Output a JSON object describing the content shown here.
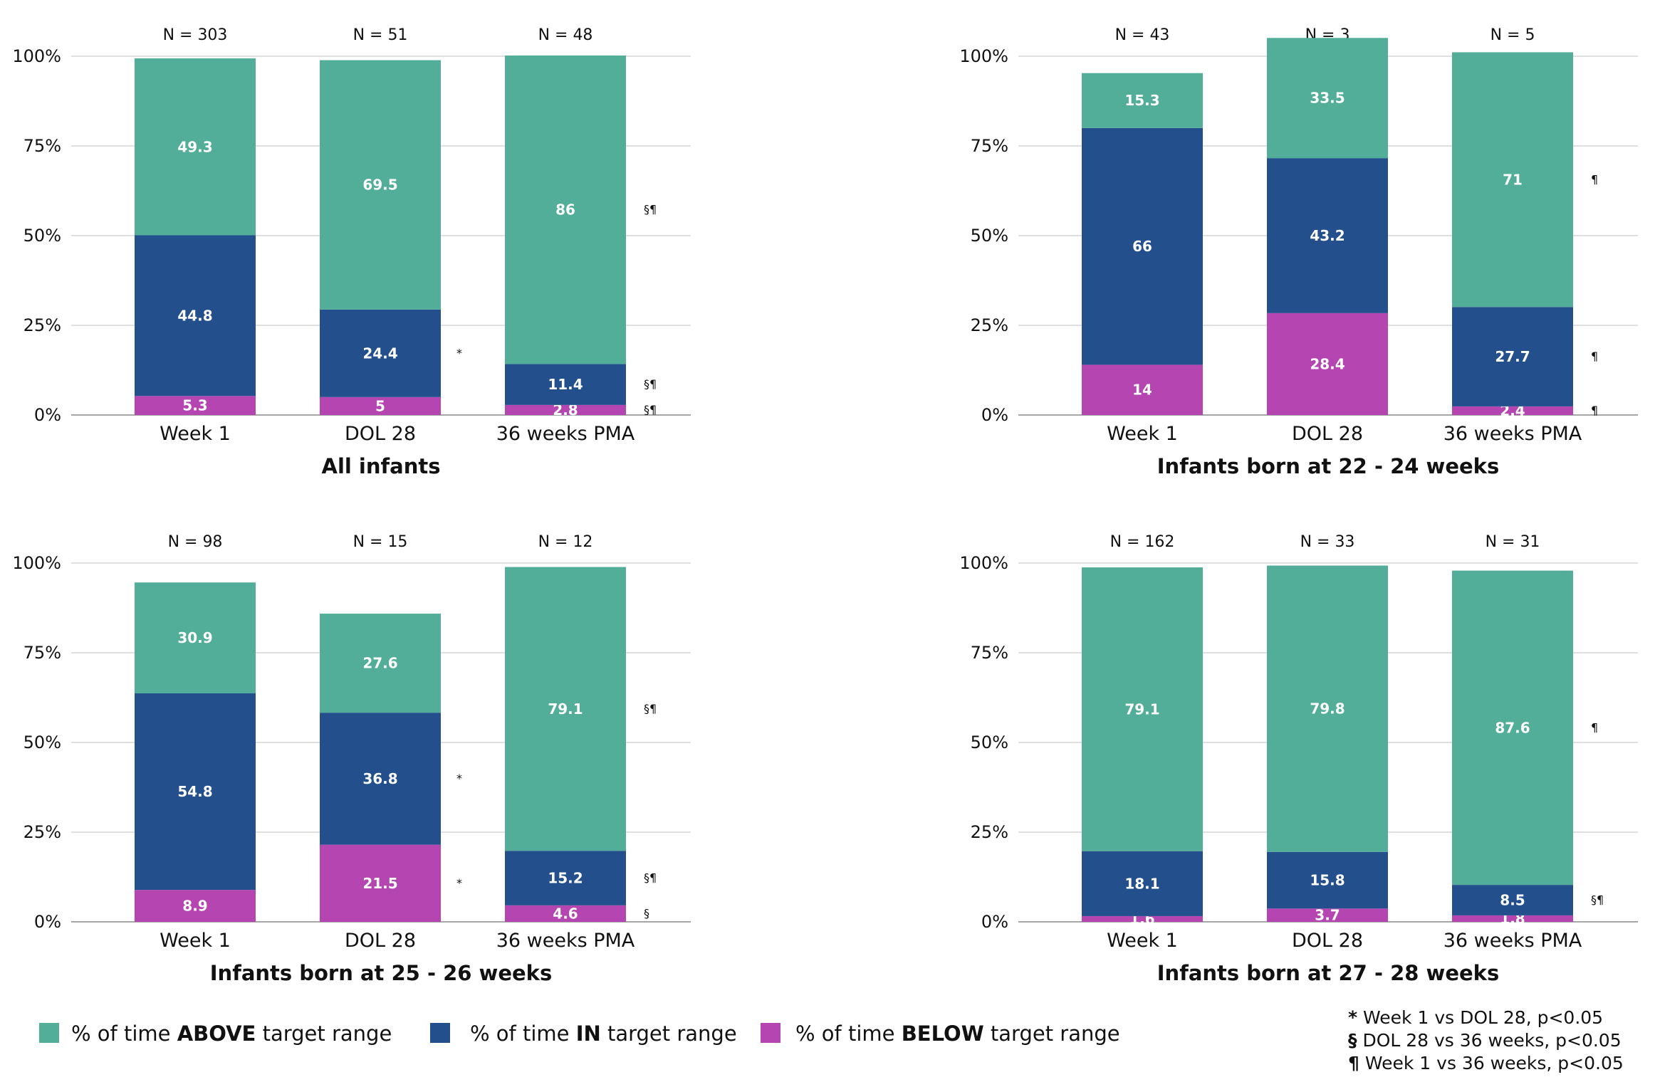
{
  "colors": {
    "above": "#52ae98",
    "in": "#23508d",
    "below": "#b545b1"
  },
  "legend": [
    {
      "key": "above",
      "prefix": "% of time ",
      "strong": "ABOVE",
      "suffix": " target range"
    },
    {
      "key": "in",
      "prefix": "% of time ",
      "strong": "IN",
      "suffix": " target range"
    },
    {
      "key": "below",
      "prefix": "% of time ",
      "strong": "BELOW",
      "suffix": " target range"
    }
  ],
  "footnotes": [
    {
      "symbol": "*",
      "text": " Week 1 vs DOL 28, p<0.05"
    },
    {
      "symbol": "§",
      "text": " DOL 28 vs 36 weeks, p<0.05"
    },
    {
      "symbol": "¶",
      "text": " Week 1 vs 36 weeks, p<0.05"
    }
  ],
  "chart_data": [
    {
      "type": "bar",
      "stacked": true,
      "title": "All infants",
      "categories": [
        "Week 1",
        "DOL 28",
        "36 weeks PMA"
      ],
      "n_labels": [
        "N = 303",
        "N = 51",
        "N = 48"
      ],
      "ylim": [
        0,
        100
      ],
      "yticks": [
        "0%",
        "25%",
        "50%",
        "75%",
        "100%"
      ],
      "series": [
        {
          "key": "below",
          "values": [
            5.3,
            5,
            2.8
          ],
          "labels": [
            "5.3",
            "5",
            "2.8"
          ],
          "marks": [
            "",
            "",
            "§¶"
          ]
        },
        {
          "key": "in",
          "values": [
            44.8,
            24.4,
            11.4
          ],
          "labels": [
            "44.8",
            "24.4",
            "11.4"
          ],
          "marks": [
            "",
            "*",
            "§¶"
          ]
        },
        {
          "key": "above",
          "values": [
            49.3,
            69.5,
            86
          ],
          "labels": [
            "49.3",
            "69.5",
            "86"
          ],
          "marks": [
            "",
            "",
            "§¶"
          ]
        }
      ]
    },
    {
      "type": "bar",
      "stacked": true,
      "title": "Infants born at 22 - 24 weeks",
      "categories": [
        "Week 1",
        "DOL 28",
        "36 weeks PMA"
      ],
      "n_labels": [
        "N = 43",
        "N = 3",
        "N = 5"
      ],
      "ylim": [
        0,
        100
      ],
      "yticks": [
        "0%",
        "25%",
        "50%",
        "75%",
        "100%"
      ],
      "series": [
        {
          "key": "below",
          "values": [
            14,
            28.4,
            2.4
          ],
          "labels": [
            "14",
            "28.4",
            "2.4"
          ],
          "marks": [
            "",
            "",
            "¶"
          ]
        },
        {
          "key": "in",
          "values": [
            66,
            43.2,
            27.7
          ],
          "labels": [
            "66",
            "43.2",
            "27.7"
          ],
          "marks": [
            "",
            "",
            "¶"
          ]
        },
        {
          "key": "above",
          "values": [
            15.3,
            33.5,
            71
          ],
          "labels": [
            "15.3",
            "33.5",
            "71"
          ],
          "marks": [
            "",
            "",
            "¶"
          ]
        }
      ]
    },
    {
      "type": "bar",
      "stacked": true,
      "title": "Infants born at 25 - 26 weeks",
      "categories": [
        "Week 1",
        "DOL 28",
        "36 weeks PMA"
      ],
      "n_labels": [
        "N = 98",
        "N = 15",
        "N = 12"
      ],
      "ylim": [
        0,
        100
      ],
      "yticks": [
        "0%",
        "25%",
        "50%",
        "75%",
        "100%"
      ],
      "series": [
        {
          "key": "below",
          "values": [
            8.9,
            21.5,
            4.6
          ],
          "labels": [
            "8.9",
            "21.5",
            "4.6"
          ],
          "marks": [
            "",
            "*",
            "§"
          ]
        },
        {
          "key": "in",
          "values": [
            54.8,
            36.8,
            15.2
          ],
          "labels": [
            "54.8",
            "36.8",
            "15.2"
          ],
          "marks": [
            "",
            "*",
            "§¶"
          ]
        },
        {
          "key": "above",
          "values": [
            30.9,
            27.6,
            79.1
          ],
          "labels": [
            "30.9",
            "27.6",
            "79.1"
          ],
          "marks": [
            "",
            "",
            "§¶"
          ]
        }
      ]
    },
    {
      "type": "bar",
      "stacked": true,
      "title": "Infants born at 27 - 28 weeks",
      "categories": [
        "Week 1",
        "DOL 28",
        "36 weeks PMA"
      ],
      "n_labels": [
        "N = 162",
        "N = 33",
        "N = 31"
      ],
      "ylim": [
        0,
        100
      ],
      "yticks": [
        "0%",
        "25%",
        "50%",
        "75%",
        "100%"
      ],
      "series": [
        {
          "key": "below",
          "values": [
            1.6,
            3.7,
            1.8
          ],
          "labels": [
            "1.6",
            "3.7",
            "1.8"
          ],
          "marks": [
            "",
            "",
            ""
          ]
        },
        {
          "key": "in",
          "values": [
            18.1,
            15.8,
            8.5
          ],
          "labels": [
            "18.1",
            "15.8",
            "8.5"
          ],
          "marks": [
            "",
            "",
            "§¶"
          ]
        },
        {
          "key": "above",
          "values": [
            79.1,
            79.8,
            87.6
          ],
          "labels": [
            "79.1",
            "79.8",
            "87.6"
          ],
          "marks": [
            "",
            "",
            "¶"
          ]
        }
      ]
    }
  ]
}
